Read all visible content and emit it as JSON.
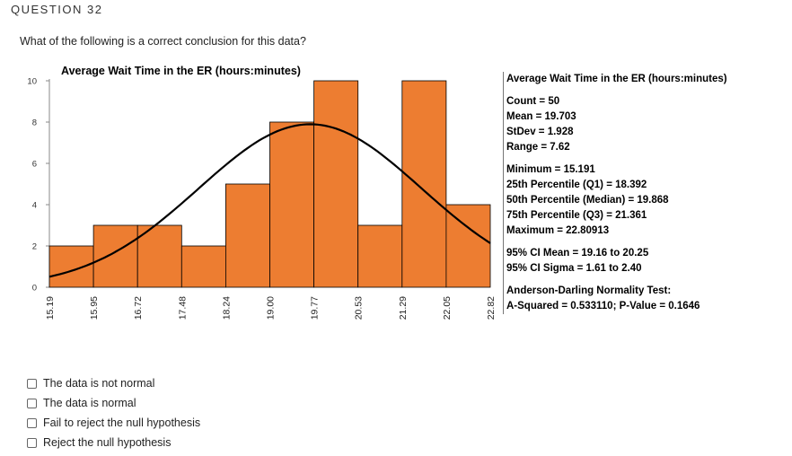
{
  "question": {
    "header": "QUESTION 32",
    "prompt": "What of the following is a correct conclusion for this data?"
  },
  "chart_data": {
    "type": "bar",
    "title": "Average Wait Time in the ER (hours:minutes)",
    "bin_edges": [
      15.19,
      15.95,
      16.72,
      17.48,
      18.24,
      19.0,
      19.77,
      20.53,
      21.29,
      22.05,
      22.82
    ],
    "tick_labels": [
      "15.19",
      "15.95",
      "16.72",
      "17.48",
      "18.24",
      "19.00",
      "19.77",
      "20.53",
      "21.29",
      "22.05",
      "22.82"
    ],
    "values": [
      2,
      3,
      3,
      2,
      5,
      8,
      10,
      3,
      10,
      4
    ],
    "ylim": [
      0,
      10
    ],
    "yticks": [
      "0",
      "2",
      "4",
      "6",
      "8",
      "10"
    ],
    "normal_curve": {
      "mean": 19.703,
      "stdev": 1.928,
      "n": 50
    },
    "colors": {
      "bar": "#ED7D31",
      "curve": "#000000"
    }
  },
  "stats": {
    "title": "Average Wait Time in the ER (hours:minutes)",
    "groups": [
      [
        "Count = 50",
        "Mean = 19.703",
        "StDev = 1.928",
        "Range = 7.62"
      ],
      [
        "Minimum = 15.191",
        "25th Percentile (Q1) = 18.392",
        "50th Percentile (Median) = 19.868",
        "75th Percentile (Q3) = 21.361",
        "Maximum = 22.80913"
      ],
      [
        "95% CI Mean = 19.16 to 20.25",
        "95% CI Sigma = 1.61 to 2.40"
      ],
      [
        "Anderson-Darling Normality Test:",
        "A-Squared = 0.533110; P-Value = 0.1646"
      ]
    ]
  },
  "options": [
    "The data is not normal",
    "The data is normal",
    "Fail to reject the null hypothesis",
    "Reject the null hypothesis"
  ]
}
